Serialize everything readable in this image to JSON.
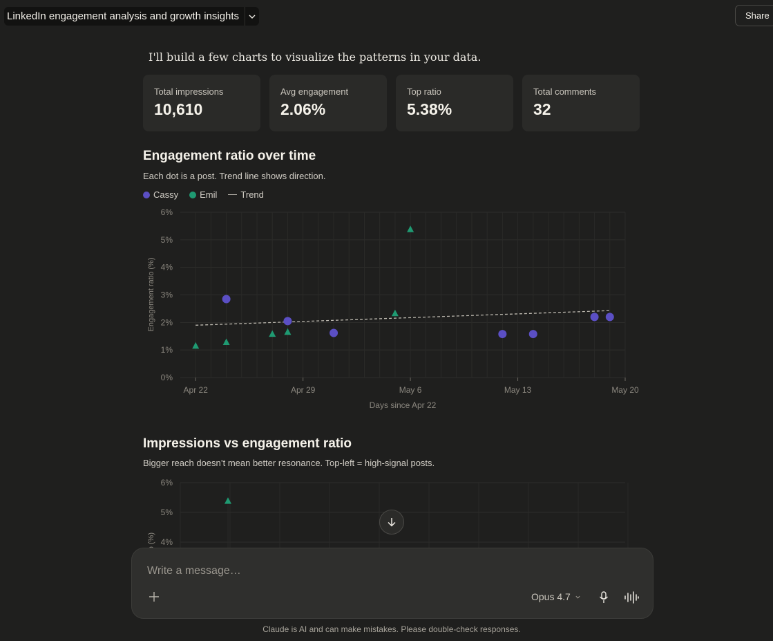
{
  "header": {
    "title": "LinkedIn engagement analysis and growth insights",
    "share_label": "Share"
  },
  "intro_text": "I'll build a few charts to visualize the patterns in your data.",
  "stats": [
    {
      "label": "Total impressions",
      "value": "10,610"
    },
    {
      "label": "Avg engagement",
      "value": "2.06%"
    },
    {
      "label": "Top ratio",
      "value": "5.38%"
    },
    {
      "label": "Total comments",
      "value": "32"
    }
  ],
  "chart1": {
    "heading": "Engagement ratio over time",
    "subtitle": "Each dot is a post. Trend line shows direction.",
    "legend": {
      "cassy": "Cassy",
      "emil": "Emil",
      "trend": "Trend"
    },
    "ylabel": "Engagement ratio (%)",
    "xlabel": "Days since Apr 22",
    "y_ticks": [
      "0%",
      "1%",
      "2%",
      "3%",
      "4%",
      "5%",
      "6%"
    ],
    "x_ticks": [
      "Apr 22",
      "Apr 29",
      "May 6",
      "May 13",
      "May 20"
    ]
  },
  "chart2": {
    "heading": "Impressions vs engagement ratio",
    "subtitle": "Bigger reach doesn’t mean better resonance. Top-left = high-signal posts.",
    "ylabel": "Engagement ratio (%)",
    "y_ticks": [
      "6%",
      "5%",
      "4%"
    ]
  },
  "composer": {
    "placeholder": "Write a message…",
    "model": "Opus 4.7"
  },
  "footer": "Claude is AI and can make mistakes. Please double-check responses.",
  "colors": {
    "cassy": "#5b4fc4",
    "emil": "#1f9a72",
    "trend": "#bdb9b0",
    "background": "#1f1f1e"
  },
  "chart_data": [
    {
      "type": "scatter",
      "title": "Engagement ratio over time",
      "xlabel": "Days since Apr 22",
      "ylabel": "Engagement ratio (%)",
      "ylim": [
        0,
        6
      ],
      "xlim": [
        -1,
        28
      ],
      "x_tick_labels": [
        "Apr 22",
        "Apr 29",
        "May 6",
        "May 13",
        "May 20"
      ],
      "grid": true,
      "legend": "top-left",
      "series": [
        {
          "name": "Cassy",
          "marker": "circle",
          "x": [
            2,
            6,
            9,
            20,
            22,
            26,
            27
          ],
          "y": [
            2.85,
            2.05,
            1.62,
            1.58,
            1.58,
            2.2,
            2.2
          ]
        },
        {
          "name": "Emil",
          "marker": "triangle",
          "x": [
            0,
            2,
            5,
            6,
            13,
            14
          ],
          "y": [
            1.15,
            1.28,
            1.58,
            1.65,
            2.33,
            5.38
          ]
        },
        {
          "name": "Trend",
          "style": "dashed",
          "x": [
            0,
            27
          ],
          "y": [
            1.9,
            2.43
          ]
        }
      ]
    },
    {
      "type": "scatter",
      "title": "Impressions vs engagement ratio",
      "ylabel": "Engagement ratio (%)",
      "ylim": [
        4,
        6
      ],
      "grid": true,
      "series": [
        {
          "name": "Emil",
          "marker": "triangle",
          "y": [
            5.38
          ]
        }
      ]
    }
  ]
}
